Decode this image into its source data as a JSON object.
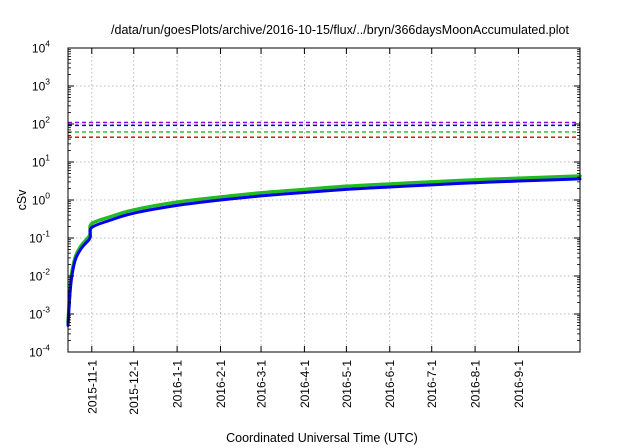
{
  "chart_data": {
    "type": "line",
    "title": "/data/run/goesPlots/archive/2016-10-15/flux/../bryn/366daysMoonAccumulated.plot",
    "xlabel": "Coordinated Universal Time (UTC)",
    "ylabel": "cSv",
    "y_scale": "log",
    "ylim": [
      0.0001,
      10000
    ],
    "xlim": [
      "2015-10-15",
      "2016-10-15"
    ],
    "grid": true,
    "x_ticks": [
      "2015-11-1",
      "2015-12-1",
      "2016-1-1",
      "2016-2-1",
      "2016-3-1",
      "2016-4-1",
      "2016-5-1",
      "2016-6-1",
      "2016-7-1",
      "2016-8-1",
      "2016-9-1"
    ],
    "y_ticks": [
      {
        "value": 0.0001,
        "base": "10",
        "exp": "-4"
      },
      {
        "value": 0.001,
        "base": "10",
        "exp": "-3"
      },
      {
        "value": 0.01,
        "base": "10",
        "exp": "-2"
      },
      {
        "value": 0.1,
        "base": "10",
        "exp": "-1"
      },
      {
        "value": 1,
        "base": "10",
        "exp": "0"
      },
      {
        "value": 10,
        "base": "10",
        "exp": "1"
      },
      {
        "value": 100,
        "base": "10",
        "exp": "2"
      },
      {
        "value": 1000,
        "base": "10",
        "exp": "3"
      },
      {
        "value": 10000,
        "base": "10",
        "exp": "4"
      }
    ],
    "series": [
      {
        "color": "#22bb22",
        "x": [
          "2015-10-15",
          "2015-10-17",
          "2015-10-20",
          "2015-10-24",
          "2015-10-28",
          "2015-10-30",
          "2015-10-31",
          "2015-11-1",
          "2015-11-15",
          "2015-12-1",
          "2016-1-1",
          "2016-2-1",
          "2016-3-1",
          "2016-4-1",
          "2016-5-1",
          "2016-6-1",
          "2016-7-1",
          "2016-8-1",
          "2016-9-1",
          "2016-10-15"
        ],
        "values": [
          0.0006,
          0.008,
          0.03,
          0.06,
          0.09,
          0.11,
          0.14,
          0.24,
          0.37,
          0.55,
          0.88,
          1.2,
          1.55,
          1.9,
          2.3,
          2.65,
          3.0,
          3.4,
          3.75,
          4.3
        ]
      },
      {
        "color": "#0000ee",
        "x": [
          "2015-10-15",
          "2015-10-17",
          "2015-10-20",
          "2015-10-24",
          "2015-10-28",
          "2015-10-30",
          "2015-10-31",
          "2015-11-1",
          "2015-11-15",
          "2015-12-1",
          "2016-1-1",
          "2016-2-1",
          "2016-3-1",
          "2016-4-1",
          "2016-5-1",
          "2016-6-1",
          "2016-7-1",
          "2016-8-1",
          "2016-9-1",
          "2016-10-15"
        ],
        "values": [
          0.0005,
          0.006,
          0.025,
          0.05,
          0.075,
          0.09,
          0.11,
          0.19,
          0.3,
          0.45,
          0.72,
          1.0,
          1.28,
          1.58,
          1.9,
          2.2,
          2.5,
          2.85,
          3.15,
          3.6
        ]
      }
    ],
    "reference_lines": [
      {
        "value": 110,
        "color": "#9400d3",
        "style": "dashed"
      },
      {
        "value": 92,
        "color": "#0000ee",
        "style": "dashed"
      },
      {
        "value": 62,
        "color": "#22bb22",
        "style": "dashed"
      },
      {
        "value": 45,
        "color": "#dd0000",
        "style": "dashed"
      }
    ]
  }
}
